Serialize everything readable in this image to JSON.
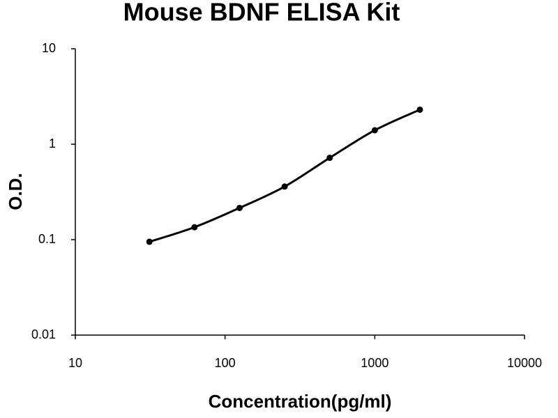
{
  "chart_data": {
    "type": "scatter",
    "title": "Mouse BDNF ELISA Kit",
    "x_label": "Concentration(pg/ml)",
    "y_label": "O.D.",
    "x": [
      31.25,
      62.5,
      125,
      250,
      500,
      1000,
      2000
    ],
    "values": [
      0.095,
      0.135,
      0.215,
      0.36,
      0.72,
      1.4,
      2.3
    ],
    "color": "#000000",
    "smooth_line": true,
    "xlim": [
      10,
      10000
    ],
    "xticks": [
      10,
      100,
      1000,
      10000
    ],
    "ylim": [
      0.01,
      10
    ],
    "yticks": [
      0.01,
      0.1,
      1,
      10
    ],
    "xlog": true,
    "ylog": true,
    "grid": false
  }
}
